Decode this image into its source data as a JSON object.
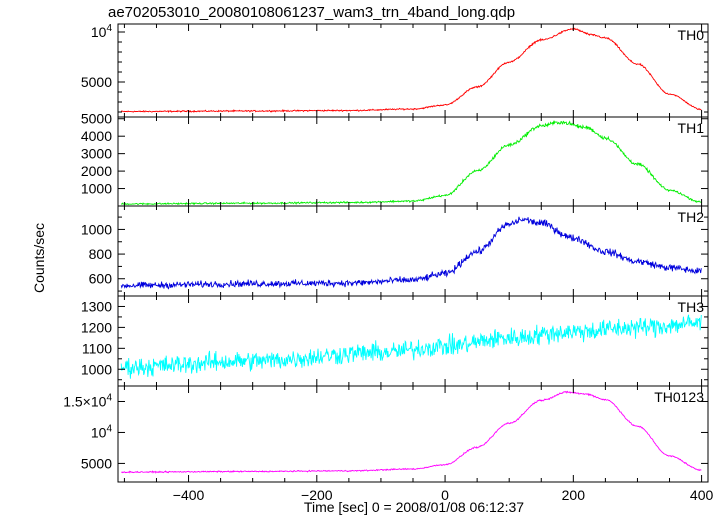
{
  "title": "ae702053010_20080108061237_wam3_trn_4band_long.qdp",
  "chart_data": {
    "type": "line",
    "title": "ae702053010_20080108061237_wam3_trn_4band_long.qdp",
    "xlabel": "Time [sec] 0 = 2008/01/08 06:12:37",
    "ylabel": "Counts/sec",
    "xlim": [
      -510,
      410
    ],
    "x_ticks": [
      {
        "value": -400,
        "label": "−400"
      },
      {
        "value": -200,
        "label": "−200"
      },
      {
        "value": 0,
        "label": "0"
      },
      {
        "value": 200,
        "label": "200"
      },
      {
        "value": 400,
        "label": "400"
      }
    ],
    "grid": false,
    "panels": [
      {
        "name": "TH0",
        "color": "#ff0000",
        "ylim": [
          1500,
          10800
        ],
        "noise": 55,
        "profile": [
          [
            -500,
            2050
          ],
          [
            -300,
            2100
          ],
          [
            -150,
            2150
          ],
          [
            -50,
            2300
          ],
          [
            0,
            2700
          ],
          [
            50,
            4500
          ],
          [
            100,
            7000
          ],
          [
            150,
            9200
          ],
          [
            200,
            10300
          ],
          [
            230,
            9700
          ],
          [
            250,
            9400
          ],
          [
            300,
            6800
          ],
          [
            350,
            3800
          ],
          [
            400,
            2250
          ]
        ],
        "y_ticks": [
          {
            "value": 2000,
            "label": ""
          },
          {
            "value": 3000,
            "label": ""
          },
          {
            "value": 4000,
            "label": ""
          },
          {
            "value": 5000,
            "label": "5000"
          },
          {
            "value": 6000,
            "label": ""
          },
          {
            "value": 7000,
            "label": ""
          },
          {
            "value": 8000,
            "label": ""
          },
          {
            "value": 9000,
            "label": ""
          },
          {
            "value": 10000,
            "label": "10",
            "sup": "4"
          }
        ]
      },
      {
        "name": "TH1",
        "color": "#00ee00",
        "ylim": [
          0,
          5100
        ],
        "noise": 35,
        "profile": [
          [
            -500,
            120
          ],
          [
            -300,
            160
          ],
          [
            -150,
            200
          ],
          [
            -50,
            280
          ],
          [
            0,
            600
          ],
          [
            50,
            2000
          ],
          [
            100,
            3500
          ],
          [
            150,
            4600
          ],
          [
            180,
            4800
          ],
          [
            220,
            4500
          ],
          [
            250,
            3900
          ],
          [
            300,
            2400
          ],
          [
            350,
            900
          ],
          [
            400,
            220
          ]
        ],
        "y_ticks": [
          {
            "value": 1000,
            "label": "1000"
          },
          {
            "value": 2000,
            "label": "2000"
          },
          {
            "value": 3000,
            "label": "3000"
          },
          {
            "value": 4000,
            "label": "4000"
          },
          {
            "value": 5000,
            "label": "5000"
          }
        ]
      },
      {
        "name": "TH2",
        "color": "#0000dd",
        "ylim": [
          460,
          1190
        ],
        "noise": 22,
        "profile": [
          [
            -500,
            545
          ],
          [
            -300,
            560
          ],
          [
            -150,
            565
          ],
          [
            -50,
            590
          ],
          [
            0,
            640
          ],
          [
            50,
            820
          ],
          [
            100,
            1040
          ],
          [
            120,
            1080
          ],
          [
            150,
            1050
          ],
          [
            200,
            930
          ],
          [
            250,
            820
          ],
          [
            300,
            740
          ],
          [
            350,
            690
          ],
          [
            400,
            660
          ]
        ],
        "y_ticks": [
          {
            "value": 500,
            "label": ""
          },
          {
            "value": 600,
            "label": "600"
          },
          {
            "value": 700,
            "label": ""
          },
          {
            "value": 800,
            "label": "800"
          },
          {
            "value": 900,
            "label": ""
          },
          {
            "value": 1000,
            "label": "1000"
          },
          {
            "value": 1100,
            "label": ""
          }
        ]
      },
      {
        "name": "TH3",
        "color": "#00ffff",
        "ylim": [
          920,
          1350
        ],
        "noise": 38,
        "profile": [
          [
            -500,
            1010
          ],
          [
            -300,
            1040
          ],
          [
            -100,
            1080
          ],
          [
            0,
            1110
          ],
          [
            100,
            1150
          ],
          [
            200,
            1180
          ],
          [
            300,
            1200
          ],
          [
            400,
            1220
          ]
        ],
        "y_ticks": [
          {
            "value": 950,
            "label": ""
          },
          {
            "value": 1000,
            "label": "1000"
          },
          {
            "value": 1050,
            "label": ""
          },
          {
            "value": 1100,
            "label": "1100"
          },
          {
            "value": 1150,
            "label": ""
          },
          {
            "value": 1200,
            "label": "1200"
          },
          {
            "value": 1250,
            "label": ""
          },
          {
            "value": 1300,
            "label": "1300"
          }
        ]
      },
      {
        "name": "TH0123",
        "color": "#ff00ff",
        "ylim": [
          2000,
          17500
        ],
        "noise": 80,
        "profile": [
          [
            -500,
            3600
          ],
          [
            -300,
            3700
          ],
          [
            -150,
            3800
          ],
          [
            -50,
            4100
          ],
          [
            0,
            4800
          ],
          [
            50,
            7600
          ],
          [
            100,
            11500
          ],
          [
            150,
            15200
          ],
          [
            190,
            16500
          ],
          [
            220,
            16200
          ],
          [
            250,
            15300
          ],
          [
            300,
            11000
          ],
          [
            350,
            6200
          ],
          [
            400,
            3900
          ]
        ],
        "y_ticks": [
          {
            "value": 5000,
            "label": "5000"
          },
          {
            "value": 10000,
            "label": "10",
            "sup": "4"
          },
          {
            "value": 15000,
            "label": "1.5×10",
            "sup": "4"
          }
        ]
      }
    ]
  }
}
